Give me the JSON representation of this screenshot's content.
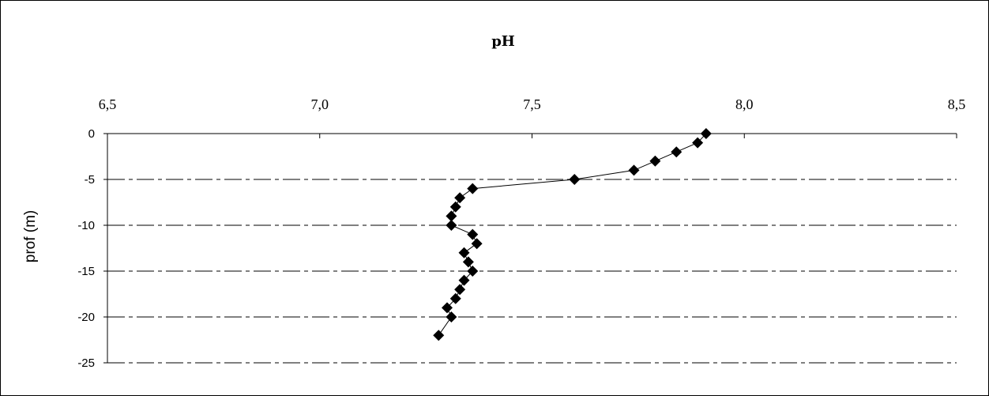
{
  "chart_data": {
    "type": "scatter",
    "title": "pH",
    "xlabel": "",
    "ylabel": "prof (m)",
    "x_axis_position": "top",
    "xlim": [
      6.5,
      8.5
    ],
    "ylim": [
      -25,
      0
    ],
    "x_ticks": [
      6.5,
      7.0,
      7.5,
      8.0,
      8.5
    ],
    "x_tick_labels": [
      "6,5",
      "7,0",
      "7,5",
      "8,0",
      "8,5"
    ],
    "y_ticks": [
      0,
      -5,
      -10,
      -15,
      -20,
      -25
    ],
    "y_tick_labels": [
      "0",
      "-5",
      "-10",
      "-15",
      "-20",
      "-25"
    ],
    "grid": "horizontal dash-dot lines",
    "legend": "none",
    "marker": "diamond",
    "connected_line": true,
    "colors": {
      "marker": "#000000",
      "line": "#000000",
      "grid": "#000000"
    },
    "series": [
      {
        "x": [
          7.91,
          7.89,
          7.84,
          7.79,
          7.74,
          7.6,
          7.36,
          7.33,
          7.32,
          7.31,
          7.31,
          7.36,
          7.37,
          7.34,
          7.35,
          7.36,
          7.34,
          7.33,
          7.32,
          7.3,
          7.31,
          7.28
        ],
        "y": [
          0,
          -1,
          -2,
          -3,
          -4,
          -5,
          -6,
          -7,
          -8,
          -9,
          -10,
          -11,
          -12,
          -13,
          -14,
          -15,
          -16,
          -17,
          -18,
          -19,
          -20,
          -22
        ]
      }
    ]
  }
}
